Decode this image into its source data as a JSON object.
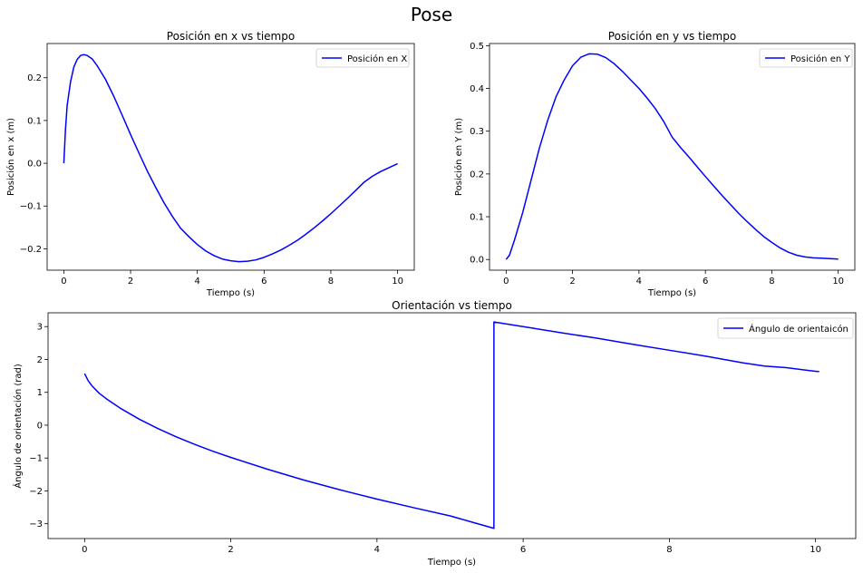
{
  "suptitle": "Pose",
  "colors": {
    "line": "#0000ff",
    "axes": "#000000",
    "background": "#ffffff",
    "legend_border": "#cccccc"
  },
  "chart_data": [
    {
      "type": "line",
      "title": "Posición en x vs tiempo",
      "xlabel": "Tiempo (s)",
      "ylabel": "Posición en x (m)",
      "xlim": [
        -0.5,
        10.5
      ],
      "ylim": [
        -0.25,
        0.28
      ],
      "xticks": [
        0,
        2,
        4,
        6,
        8,
        10
      ],
      "xtick_labels": [
        "0",
        "2",
        "4",
        "6",
        "8",
        "10"
      ],
      "yticks": [
        -0.2,
        -0.1,
        0.0,
        0.1,
        0.2
      ],
      "ytick_labels": [
        "−0.2",
        "−0.1",
        "0.0",
        "0.1",
        "0.2"
      ],
      "legend_position": "upper-right",
      "grid": false,
      "series": [
        {
          "name": "Posición en X",
          "x": [
            0,
            0.05,
            0.1,
            0.2,
            0.3,
            0.4,
            0.5,
            0.6,
            0.7,
            0.85,
            1.0,
            1.25,
            1.5,
            1.75,
            2.0,
            2.25,
            2.5,
            2.75,
            3.0,
            3.25,
            3.5,
            3.75,
            4.0,
            4.25,
            4.5,
            4.75,
            5.0,
            5.25,
            5.5,
            5.75,
            6.0,
            6.25,
            6.5,
            6.75,
            7.0,
            7.25,
            7.5,
            7.75,
            8.0,
            8.25,
            8.5,
            8.75,
            9.0,
            9.25,
            9.5,
            9.75,
            10.0
          ],
          "y": [
            0.0,
            0.08,
            0.135,
            0.19,
            0.225,
            0.243,
            0.252,
            0.254,
            0.252,
            0.244,
            0.228,
            0.196,
            0.156,
            0.112,
            0.067,
            0.024,
            -0.018,
            -0.056,
            -0.092,
            -0.124,
            -0.152,
            -0.172,
            -0.19,
            -0.205,
            -0.216,
            -0.224,
            -0.228,
            -0.23,
            -0.229,
            -0.226,
            -0.22,
            -0.212,
            -0.203,
            -0.192,
            -0.18,
            -0.166,
            -0.151,
            -0.135,
            -0.118,
            -0.1,
            -0.082,
            -0.063,
            -0.044,
            -0.03,
            -0.019,
            -0.01,
            -0.001
          ]
        }
      ]
    },
    {
      "type": "line",
      "title": "Posición en y vs tiempo",
      "xlabel": "Tiempo (s)",
      "ylabel": "Posición en Y (m)",
      "xlim": [
        -0.5,
        10.5
      ],
      "ylim": [
        -0.025,
        0.505
      ],
      "xticks": [
        0,
        2,
        4,
        6,
        8,
        10
      ],
      "xtick_labels": [
        "0",
        "2",
        "4",
        "6",
        "8",
        "10"
      ],
      "yticks": [
        0.0,
        0.1,
        0.2,
        0.3,
        0.4,
        0.5
      ],
      "ytick_labels": [
        "0.0",
        "0.1",
        "0.2",
        "0.3",
        "0.4",
        "0.5"
      ],
      "legend_position": "upper-right",
      "grid": false,
      "series": [
        {
          "name": "Posición en Y",
          "x": [
            0,
            0.1,
            0.25,
            0.5,
            0.75,
            1.0,
            1.25,
            1.5,
            1.75,
            2.0,
            2.25,
            2.5,
            2.75,
            3.0,
            3.25,
            3.5,
            3.75,
            4.0,
            4.25,
            4.5,
            4.75,
            5.0,
            5.25,
            5.5,
            5.75,
            6.0,
            6.25,
            6.5,
            6.75,
            7.0,
            7.25,
            7.5,
            7.75,
            8.0,
            8.25,
            8.5,
            8.75,
            9.0,
            9.25,
            9.5,
            9.75,
            10.0
          ],
          "y": [
            0.0,
            0.01,
            0.045,
            0.11,
            0.185,
            0.26,
            0.325,
            0.38,
            0.42,
            0.453,
            0.473,
            0.481,
            0.48,
            0.472,
            0.458,
            0.44,
            0.42,
            0.4,
            0.377,
            0.352,
            0.322,
            0.286,
            0.262,
            0.24,
            0.217,
            0.194,
            0.172,
            0.15,
            0.129,
            0.108,
            0.089,
            0.071,
            0.054,
            0.04,
            0.027,
            0.017,
            0.01,
            0.006,
            0.004,
            0.003,
            0.002,
            0.001
          ]
        }
      ]
    },
    {
      "type": "line",
      "title": "Orientación vs tiempo",
      "xlabel": "Tiempo (s)",
      "ylabel": "Ángulo de orientación (rad)",
      "xlim": [
        -0.5,
        10.55
      ],
      "ylim": [
        -3.45,
        3.42
      ],
      "xticks": [
        0,
        2,
        4,
        6,
        8,
        10
      ],
      "xtick_labels": [
        "0",
        "2",
        "4",
        "6",
        "8",
        "10"
      ],
      "yticks": [
        -3,
        -2,
        -1,
        0,
        1,
        2,
        3
      ],
      "ytick_labels": [
        "−3",
        "−2",
        "−1",
        "0",
        "1",
        "2",
        "3"
      ],
      "legend_position": "upper-right",
      "grid": false,
      "series": [
        {
          "name": "Ángulo de orientaicón",
          "x": [
            0,
            0.05,
            0.1,
            0.2,
            0.3,
            0.5,
            0.75,
            1.0,
            1.25,
            1.5,
            1.75,
            2.0,
            2.5,
            3.0,
            3.5,
            4.0,
            4.5,
            5.0,
            5.3,
            5.6,
            5.6,
            6.0,
            6.5,
            7.0,
            7.5,
            8.0,
            8.5,
            9.0,
            9.3,
            9.6,
            10.0,
            10.05
          ],
          "y": [
            1.57,
            1.35,
            1.2,
            0.97,
            0.8,
            0.5,
            0.18,
            -0.1,
            -0.35,
            -0.58,
            -0.79,
            -0.98,
            -1.34,
            -1.67,
            -1.97,
            -2.25,
            -2.51,
            -2.76,
            -2.95,
            -3.14,
            3.14,
            3.0,
            2.82,
            2.65,
            2.46,
            2.28,
            2.1,
            1.9,
            1.8,
            1.75,
            1.64,
            1.63
          ]
        }
      ]
    }
  ]
}
